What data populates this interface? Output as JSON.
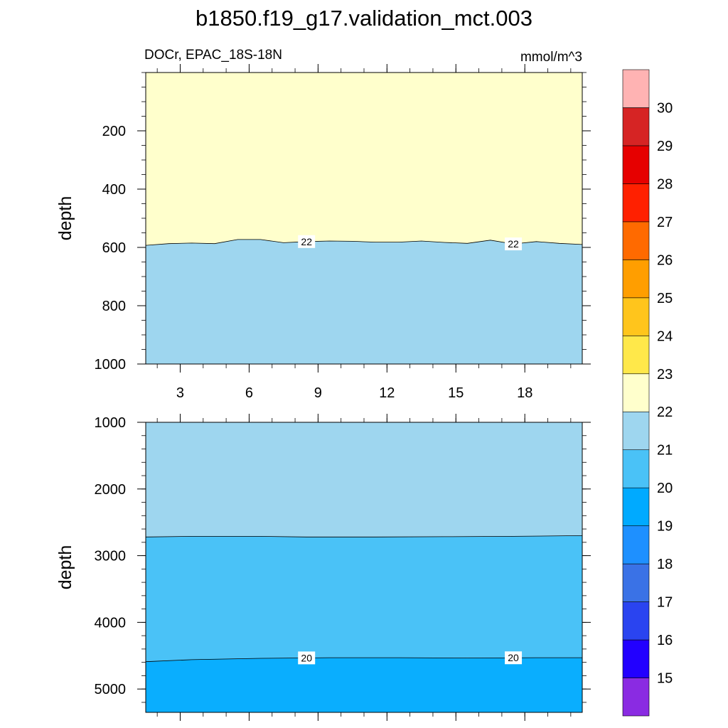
{
  "chart_data": {
    "type": "contour",
    "title": "b1850.f19_g17.validation_mct.003",
    "variable_label": "DOCr, EPAC_18S-18N",
    "units": "mmol/m^3",
    "ylabel": "depth",
    "x_ticks": [
      3,
      6,
      9,
      12,
      15,
      18
    ],
    "xlim": [
      1.5,
      20.5
    ],
    "x_minor_step": 1,
    "colorbar": {
      "labels": [
        15,
        16,
        17,
        18,
        19,
        20,
        21,
        22,
        23,
        24,
        25,
        26,
        27,
        28,
        29,
        30
      ],
      "colors": [
        "#8a2be2",
        "#2200ff",
        "#2a44f0",
        "#3a72e6",
        "#1e90ff",
        "#00aaff",
        "#4ac2f7",
        "#9ed6ef",
        "#ffffcc",
        "#ffe84a",
        "#ffc51c",
        "#ff9e00",
        "#ff6a00",
        "#ff2000",
        "#e60000",
        "#d62424",
        "#ffb3b3"
      ]
    },
    "panels": [
      {
        "name": "upper",
        "ylim": [
          0,
          1000
        ],
        "y_ticks": [
          200,
          400,
          600,
          800,
          1000
        ],
        "y_minor_step": 50,
        "bands": [
          {
            "range": "22-23",
            "color": "#ffffcc"
          },
          {
            "range": "21-22",
            "color": "#9ed6ef"
          }
        ],
        "contours": [
          {
            "level": 22,
            "x": [
              1.5,
              2.5,
              3.5,
              4.5,
              5.5,
              6.5,
              7.5,
              8.5,
              9.5,
              10.5,
              11.5,
              12.5,
              13.5,
              14.5,
              15.5,
              16.5,
              17.5,
              18.5,
              19.5,
              20.5
            ],
            "depth": [
              593,
              587,
              585,
              587,
              573,
              573,
              584,
              580,
              578,
              579,
              582,
              582,
              578,
              583,
              586,
              575,
              588,
              580,
              586,
              590
            ],
            "labels_at_x": [
              8.5,
              17.5
            ]
          }
        ]
      },
      {
        "name": "lower",
        "ylim": [
          1000,
          5350
        ],
        "y_ticks": [
          1000,
          2000,
          3000,
          4000,
          5000
        ],
        "y_minor_step": 200,
        "bands": [
          {
            "range": "21-22",
            "color": "#9ed6ef"
          },
          {
            "range": "20-21",
            "color": "#4ac2f7"
          },
          {
            "range": "19-20",
            "color": "#0aaefe"
          }
        ],
        "contours": [
          {
            "level": 21,
            "x": [
              1.5,
              3.5,
              6.5,
              8.5,
              11.5,
              14.5,
              17.5,
              20.5
            ],
            "depth": [
              2720,
              2710,
              2710,
              2720,
              2720,
              2715,
              2710,
              2700
            ],
            "labels_at_x": []
          },
          {
            "level": 20,
            "x": [
              1.5,
              3.5,
              6.5,
              9.5,
              12.5,
              15.5,
              18.5,
              20.5
            ],
            "depth": [
              4590,
              4560,
              4540,
              4530,
              4530,
              4535,
              4530,
              4530
            ],
            "labels_at_x": [
              8.5,
              17.5
            ]
          }
        ]
      }
    ]
  }
}
